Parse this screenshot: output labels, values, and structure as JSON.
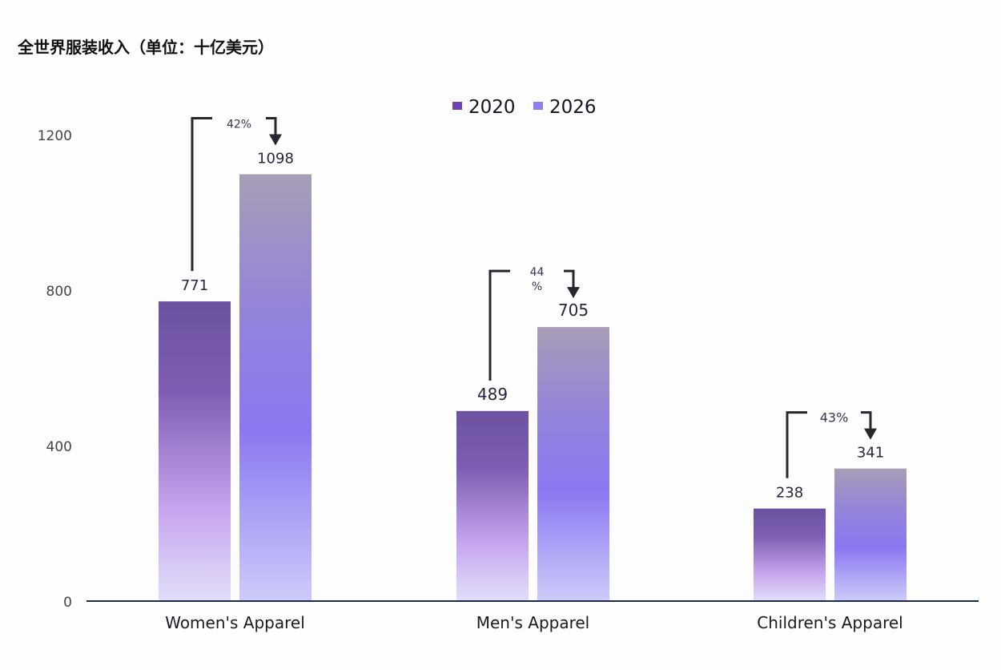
{
  "chart_data": {
    "type": "bar",
    "title": "全世界服装收入（单位：十亿美元）",
    "categories": [
      "Women's Apparel",
      "Men's Apparel",
      "Children's Apparel"
    ],
    "series": [
      {
        "name": "2020",
        "values": [
          771,
          489,
          238
        ]
      },
      {
        "name": "2026",
        "values": [
          1098,
          705,
          341
        ]
      }
    ],
    "growth_labels": [
      "42%",
      "44%",
      "43%"
    ],
    "yticks": [
      0,
      400,
      800,
      1200
    ],
    "ylim": [
      0,
      1200
    ],
    "grid": false,
    "legend_position": "top-center",
    "colors": {
      "2020": [
        "#6c52a0",
        "#7e5eb4",
        "#c7a6ef",
        "#e2def9"
      ],
      "2026": [
        "#a89db6",
        "#9584d8",
        "#8a78f2",
        "#ccccf9"
      ],
      "axis": "#1b2a55",
      "annotation": "#2a2630"
    }
  }
}
